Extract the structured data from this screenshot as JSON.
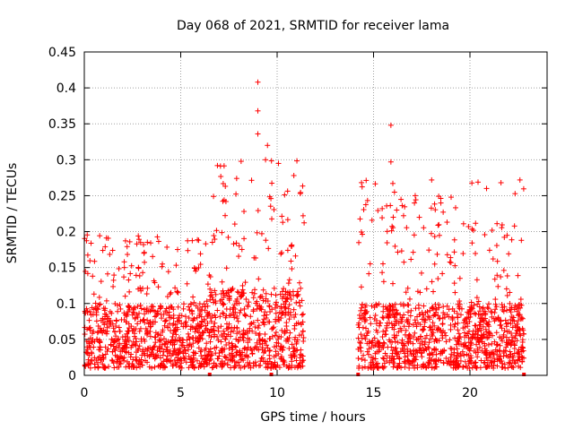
{
  "chart_data": {
    "type": "scatter",
    "title": "Day 068 of 2021, SRMTID for receiver lama",
    "xlabel": "GPS time / hours",
    "ylabel": "SRMTID / TECUs",
    "xlim": [
      0,
      24
    ],
    "ylim": [
      0,
      0.45
    ],
    "grid": true,
    "x_ticks": [
      0,
      5,
      10,
      15,
      20
    ],
    "y_ticks": [
      0,
      0.05,
      0.1,
      0.15,
      0.2,
      0.25,
      0.3,
      0.35,
      0.4,
      0.45
    ],
    "y_tick_labels": [
      "0",
      "0.05",
      "0.1",
      "0.15",
      "0.2",
      "0.25",
      "0.3",
      "0.35",
      "0.4",
      "0.45"
    ],
    "marker": "+",
    "series_color": "#ff0000",
    "notable_points": [
      {
        "x": 9.0,
        "y": 0.408
      },
      {
        "x": 9.0,
        "y": 0.368
      },
      {
        "x": 9.0,
        "y": 0.336
      },
      {
        "x": 9.5,
        "y": 0.32
      },
      {
        "x": 9.4,
        "y": 0.3
      },
      {
        "x": 7.9,
        "y": 0.274
      },
      {
        "x": 15.9,
        "y": 0.348
      },
      {
        "x": 15.9,
        "y": 0.297
      },
      {
        "x": 16.0,
        "y": 0.267
      },
      {
        "x": 16.2,
        "y": 0.23
      },
      {
        "x": 6.7,
        "y": 0.249
      },
      {
        "x": 11.2,
        "y": 0.253
      },
      {
        "x": 21.2,
        "y": 0.162
      },
      {
        "x": 2.8,
        "y": 0.194
      }
    ],
    "activity_windows": [
      {
        "x_range": [
          0.0,
          6.5
        ],
        "typical_y": [
          0.0,
          0.12
        ],
        "peak_y": 0.21
      },
      {
        "x_range": [
          6.5,
          11.4
        ],
        "typical_y": [
          0.0,
          0.15
        ],
        "peak_y": 0.41
      },
      {
        "x_range": [
          14.2,
          22.8
        ],
        "typical_y": [
          0.0,
          0.12
        ],
        "peak_y": 0.35
      }
    ],
    "data_gaps": [
      {
        "x_range": [
          11.4,
          14.2
        ]
      }
    ],
    "zero_markers_x": [
      6.5,
      9.7,
      14.2,
      22.8
    ]
  }
}
